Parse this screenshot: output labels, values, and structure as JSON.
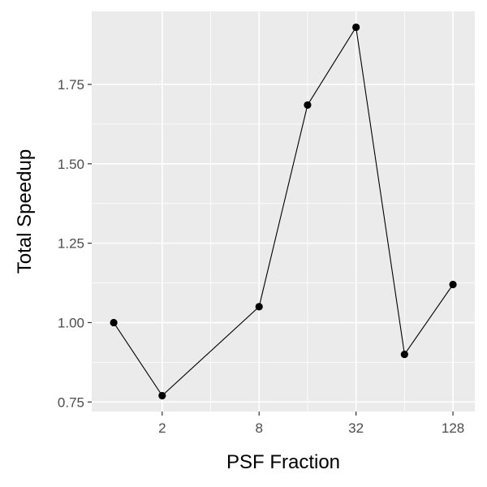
{
  "chart_data": {
    "type": "line",
    "xscale": "log2",
    "xlabel": "PSF Fraction",
    "ylabel": "Total Speedup",
    "xlim": [
      0.73,
      175
    ],
    "ylim": [
      0.72,
      1.98
    ],
    "x_ticks": [
      2,
      8,
      32,
      128
    ],
    "x_tick_labels": [
      "2",
      "8",
      "32",
      "128"
    ],
    "y_ticks": [
      0.75,
      1.0,
      1.25,
      1.5,
      1.75
    ],
    "y_tick_labels": [
      "0.75",
      "1.00",
      "1.25",
      "1.50",
      "1.75"
    ],
    "grid": true,
    "background": "#ebebeb",
    "grid_major_color": "#ffffff",
    "series": [
      {
        "x": [
          1,
          2,
          8,
          16,
          32,
          64,
          128
        ],
        "y": [
          1.0,
          0.77,
          1.05,
          1.685,
          1.93,
          0.9,
          1.12
        ],
        "color": "#000000"
      }
    ]
  }
}
